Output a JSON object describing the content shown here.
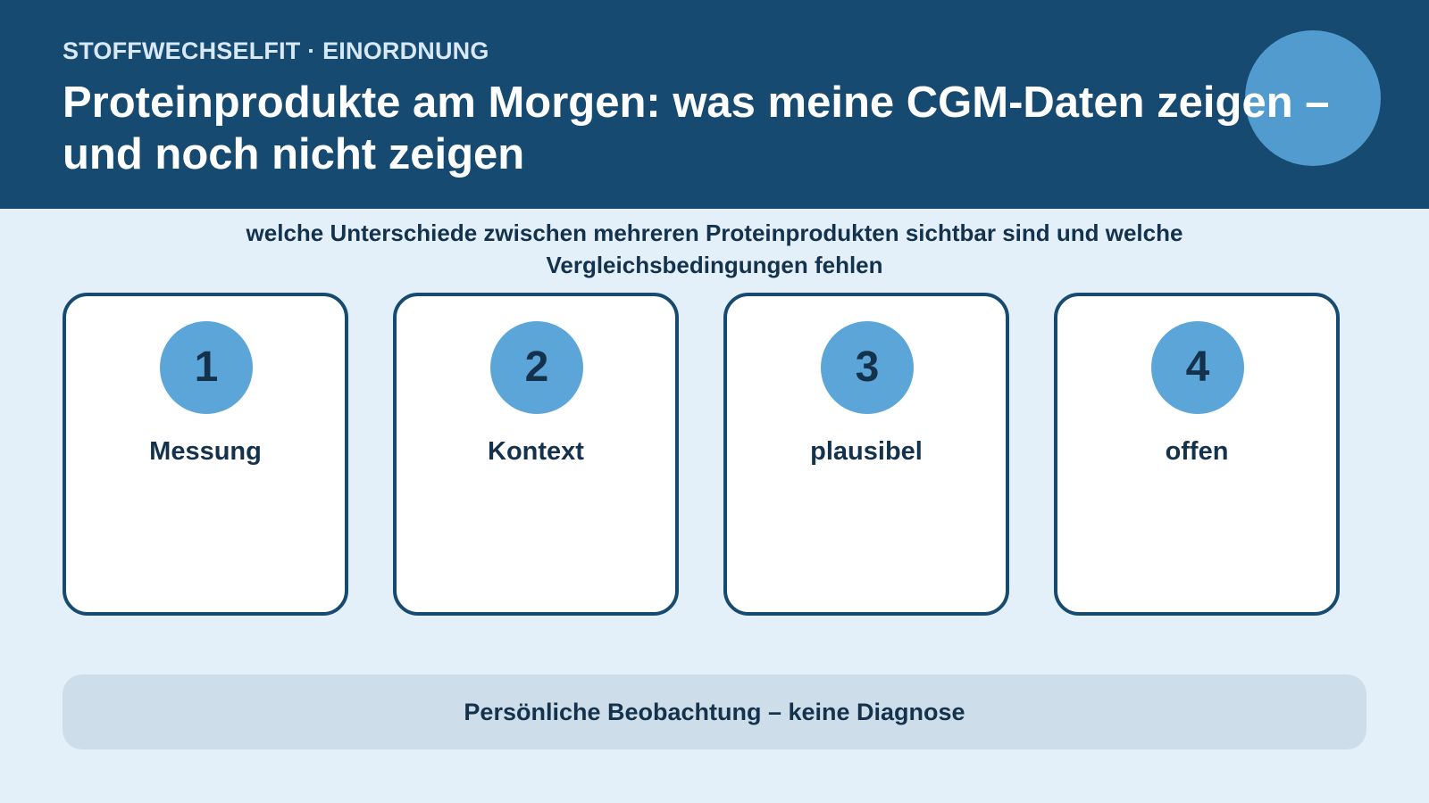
{
  "header": {
    "kicker": "STOFFWECHSELFIT · EINORDNUNG",
    "title": "Proteinprodukte am Morgen: was meine CGM-Daten zeigen – und noch nicht zeigen"
  },
  "subtitle": {
    "line1": "welche Unterschiede zwischen mehreren Proteinprodukten sichtbar sind und welche",
    "line2": "Vergleichsbedingungen fehlen"
  },
  "cards": [
    {
      "number": "1",
      "label": "Messung"
    },
    {
      "number": "2",
      "label": "Kontext"
    },
    {
      "number": "3",
      "label": "plausibel"
    },
    {
      "number": "4",
      "label": "offen"
    }
  ],
  "footer": {
    "text": "Persönliche Beobachtung – keine Diagnose"
  },
  "colors": {
    "header_bg": "#174a70",
    "accent": "#5ca5d8",
    "page_bg": "#e3f0fa",
    "text_dark": "#15324d"
  }
}
